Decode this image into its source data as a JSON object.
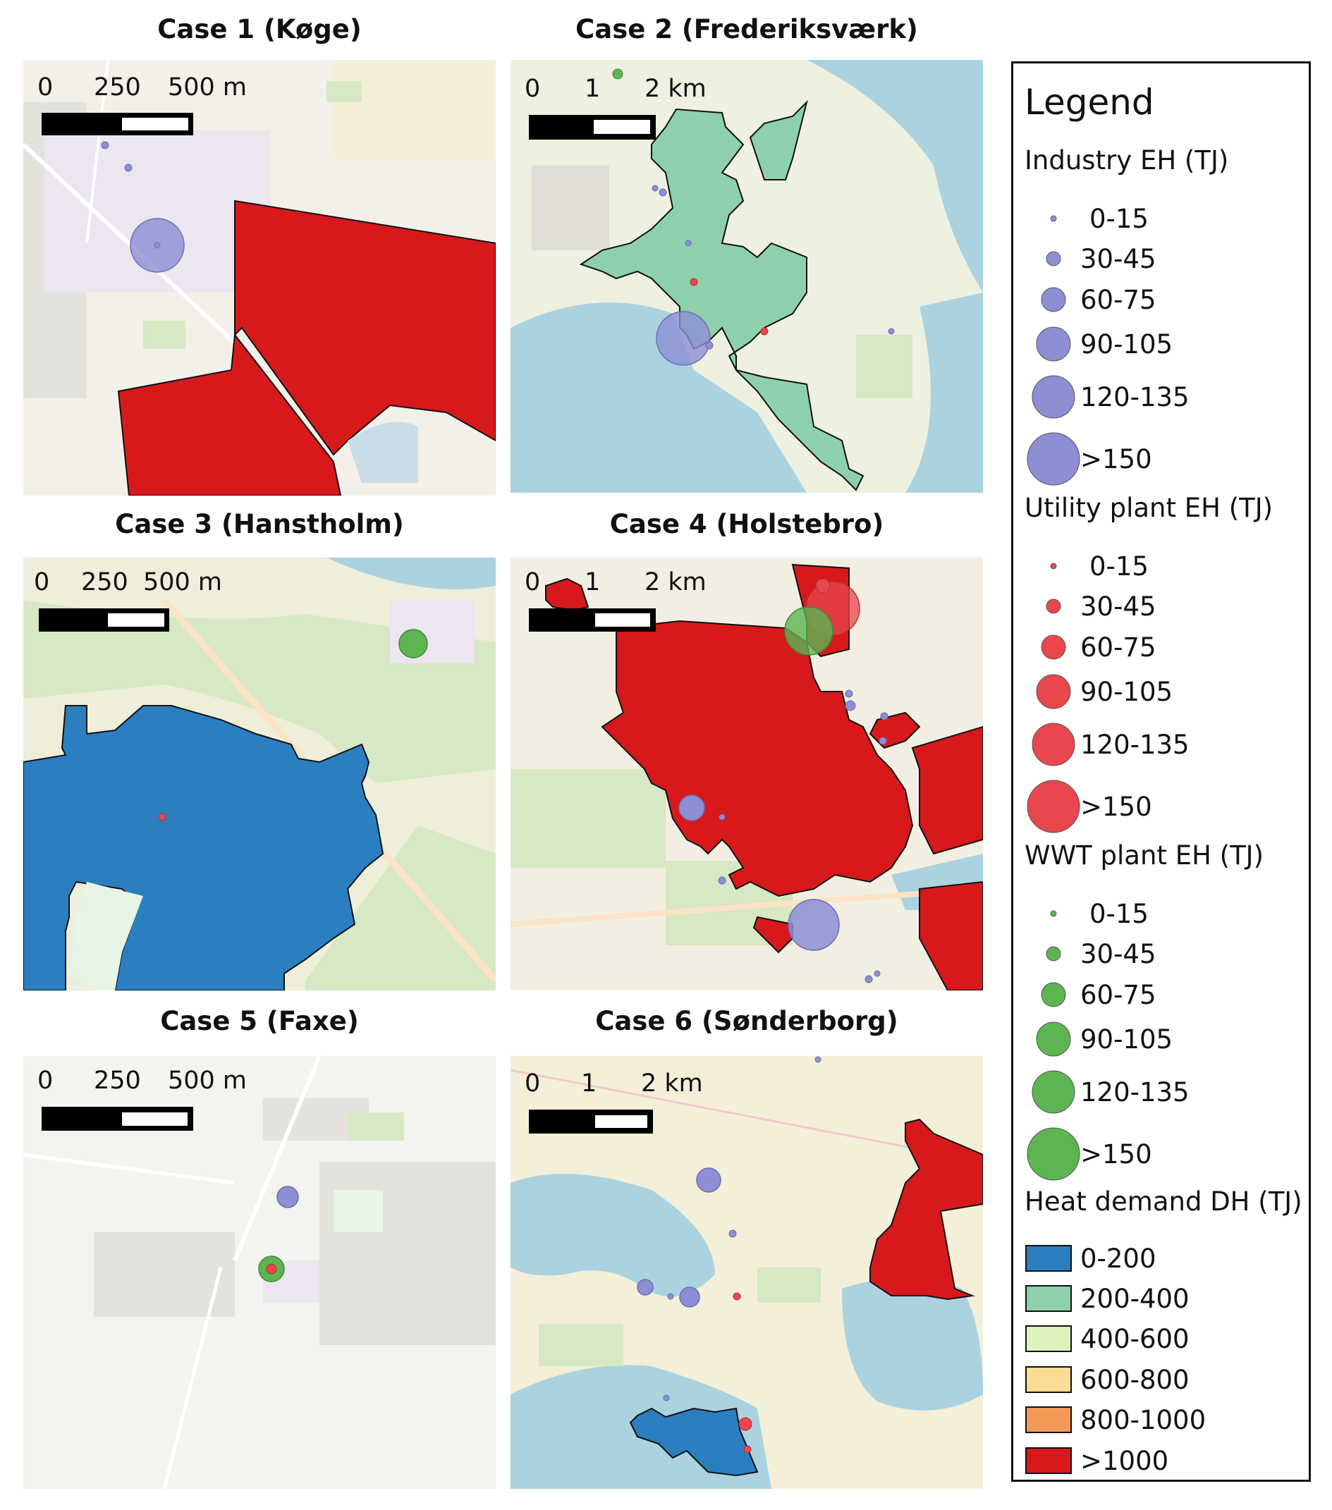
{
  "panels": [
    {
      "title": "Case 1 (Køge)",
      "scale": [
        "0",
        "250",
        "500 m"
      ]
    },
    {
      "title": "Case 2 (Frederiksværk)",
      "scale": [
        "0",
        "1",
        "2 km"
      ]
    },
    {
      "title": "Case 3 (Hanstholm)",
      "scale": [
        "0",
        "250",
        "500 m"
      ]
    },
    {
      "title": "Case 4 (Holstebro)",
      "scale": [
        "0",
        "1",
        "2 km"
      ]
    },
    {
      "title": "Case 5 (Faxe)",
      "scale": [
        "0",
        "250",
        "500 m"
      ]
    },
    {
      "title": "Case 6 (Sønderborg)",
      "scale": [
        "0",
        "1",
        "2 km"
      ]
    }
  ],
  "legend": {
    "title": "Legend",
    "sections": [
      {
        "name": "Industry EH (TJ)",
        "symbol": "circle",
        "color": "#8c8fd4",
        "items": [
          "0-15",
          "30-45",
          "60-75",
          "90-105",
          "120-135",
          ">150"
        ]
      },
      {
        "name": "Utility plant EH (TJ)",
        "symbol": "circle",
        "color": "#e8474d",
        "items": [
          "0-15",
          "30-45",
          "60-75",
          "90-105",
          "120-135",
          ">150"
        ]
      },
      {
        "name": "WWT plant EH (TJ)",
        "symbol": "circle",
        "color": "#5db552",
        "items": [
          "0-15",
          "30-45",
          "60-75",
          "90-105",
          "120-135",
          ">150"
        ]
      },
      {
        "name": "Heat demand DH (TJ)",
        "symbol": "square",
        "items": [
          "0-200",
          "200-400",
          "400-600",
          "600-800",
          "800-1000",
          ">1000"
        ],
        "colors": [
          "#2b7fc0",
          "#8ed0ab",
          "#def2bc",
          "#fddc93",
          "#f39856",
          "#d7191c"
        ]
      }
    ]
  },
  "colors": {
    "map_bg": "#f2efe6",
    "water": "#c8dde8",
    "green": "#d6e8c4",
    "industry": "#8c8fd4",
    "utility": "#e8474d",
    "wwt": "#5db552",
    "dh_0_200": "#2b7fc0",
    "dh_200_400": "#8ed0ab",
    "dh_gt_1000": "#d7191c"
  }
}
